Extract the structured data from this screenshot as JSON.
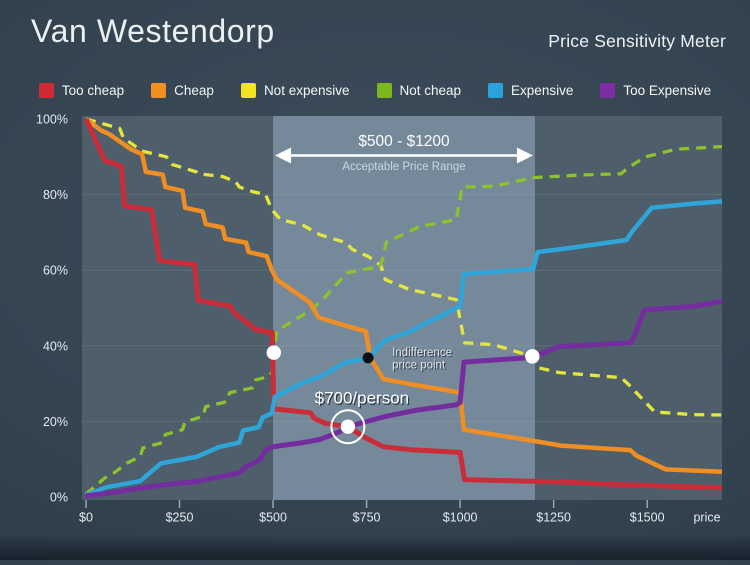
{
  "header": {
    "title": "Van Westendorp",
    "subtitle": "Price Sensitivity Meter"
  },
  "legend": {
    "items": [
      {
        "label": "Too cheap",
        "color": "#cf2b35"
      },
      {
        "label": "Cheap",
        "color": "#f09022"
      },
      {
        "label": "Not expensive",
        "color": "#f2e41e"
      },
      {
        "label": "Not cheap",
        "color": "#7db71e"
      },
      {
        "label": "Expensive",
        "color": "#2ba3da"
      },
      {
        "label": "Too Expensive",
        "color": "#7c2fa4"
      }
    ]
  },
  "chart_data": {
    "type": "line",
    "title": "Van Westendorp Price Sensitivity Meter",
    "xlabel": "price",
    "ylabel": "",
    "xlim": [
      0,
      1700
    ],
    "ylim": [
      0,
      100
    ],
    "grid": "horizontal",
    "x_ticks": [
      {
        "value": 0,
        "label": "$0"
      },
      {
        "value": 250,
        "label": "$250"
      },
      {
        "value": 500,
        "label": "$500"
      },
      {
        "value": 750,
        "label": "$750"
      },
      {
        "value": 1000,
        "label": "$1000"
      },
      {
        "value": 1250,
        "label": "$1250"
      },
      {
        "value": 1500,
        "label": "$1500"
      }
    ],
    "y_ticks": [
      {
        "value": 0,
        "label": "0%"
      },
      {
        "value": 20,
        "label": "20%"
      },
      {
        "value": 40,
        "label": "40%"
      },
      {
        "value": 60,
        "label": "60%"
      },
      {
        "value": 80,
        "label": "80%"
      },
      {
        "value": 100,
        "label": "100%"
      }
    ],
    "acceptable_range": {
      "from": 500,
      "to": 1200,
      "label": "$500 - $1200",
      "sublabel": "Acceptable Price Range"
    },
    "series": [
      {
        "name": "Not expensive",
        "color": "#e3e63e",
        "style": "dashed",
        "width": 3.3,
        "points": [
          [
            0,
            100
          ],
          [
            90,
            97.5
          ],
          [
            100,
            95
          ],
          [
            150,
            91.5
          ],
          [
            215,
            90
          ],
          [
            230,
            88
          ],
          [
            295,
            86
          ],
          [
            300,
            85.5
          ],
          [
            365,
            84.8
          ],
          [
            400,
            83.4
          ],
          [
            410,
            82
          ],
          [
            445,
            80.8
          ],
          [
            480,
            80
          ],
          [
            497,
            76
          ],
          [
            520,
            73.4
          ],
          [
            578,
            72
          ],
          [
            625,
            69.4
          ],
          [
            695,
            67.3
          ],
          [
            712,
            65.5
          ],
          [
            755,
            63.6
          ],
          [
            788,
            61.3
          ],
          [
            800,
            57.5
          ],
          [
            865,
            54.9
          ],
          [
            990,
            52.2
          ],
          [
            1000,
            47
          ],
          [
            1012,
            40.8
          ],
          [
            1090,
            40.3
          ],
          [
            1193,
            37.2
          ],
          [
            1208,
            34.2
          ],
          [
            1265,
            32.9
          ],
          [
            1430,
            31.6
          ],
          [
            1448,
            30
          ],
          [
            1520,
            22.5
          ],
          [
            1620,
            21.8
          ],
          [
            1700,
            21.7
          ]
        ]
      },
      {
        "name": "Not cheap",
        "color": "#8cc32d",
        "style": "dashed",
        "width": 3.3,
        "points": [
          [
            0,
            0.8
          ],
          [
            50,
            5
          ],
          [
            75,
            6.4
          ],
          [
            110,
            9
          ],
          [
            145,
            10.7
          ],
          [
            152,
            13
          ],
          [
            205,
            14.4
          ],
          [
            212,
            16.5
          ],
          [
            258,
            17.8
          ],
          [
            265,
            19.9
          ],
          [
            312,
            21.3
          ],
          [
            320,
            23.9
          ],
          [
            376,
            25.2
          ],
          [
            384,
            27.6
          ],
          [
            446,
            28.9
          ],
          [
            454,
            31
          ],
          [
            487,
            31.8
          ],
          [
            497,
            33
          ],
          [
            502,
            38.1
          ],
          [
            510,
            44
          ],
          [
            600,
            49.4
          ],
          [
            640,
            53
          ],
          [
            697,
            59.3
          ],
          [
            785,
            61
          ],
          [
            795,
            63.5
          ],
          [
            802,
            67.3
          ],
          [
            890,
            71.5
          ],
          [
            990,
            73.4
          ],
          [
            1005,
            82
          ],
          [
            1090,
            82.2
          ],
          [
            1195,
            84.5
          ],
          [
            1330,
            85.2
          ],
          [
            1430,
            85.5
          ],
          [
            1448,
            87
          ],
          [
            1495,
            90
          ],
          [
            1578,
            92
          ],
          [
            1700,
            92.7
          ]
        ]
      },
      {
        "name": "Cheap",
        "color": "#ee8e23",
        "style": "solid",
        "width": 4.5,
        "points": [
          [
            0,
            100
          ],
          [
            40,
            97
          ],
          [
            62,
            96
          ],
          [
            120,
            92
          ],
          [
            150,
            90.7
          ],
          [
            160,
            86
          ],
          [
            205,
            85.3
          ],
          [
            212,
            82
          ],
          [
            258,
            81
          ],
          [
            265,
            76.5
          ],
          [
            312,
            75.5
          ],
          [
            320,
            72.2
          ],
          [
            365,
            71.3
          ],
          [
            372,
            68.3
          ],
          [
            428,
            67.3
          ],
          [
            435,
            64.8
          ],
          [
            483,
            63.7
          ],
          [
            497,
            60
          ],
          [
            510,
            57.5
          ],
          [
            598,
            51.5
          ],
          [
            622,
            47.5
          ],
          [
            698,
            45.2
          ],
          [
            748,
            43.8
          ],
          [
            760,
            36.8
          ],
          [
            795,
            31.2
          ],
          [
            875,
            29.7
          ],
          [
            955,
            28.4
          ],
          [
            1000,
            27.6
          ],
          [
            1010,
            17.8
          ],
          [
            1200,
            14.8
          ],
          [
            1270,
            13.6
          ],
          [
            1455,
            12.4
          ],
          [
            1470,
            11
          ],
          [
            1550,
            7.3
          ],
          [
            1700,
            6.7
          ]
        ]
      },
      {
        "name": "Too cheap",
        "color": "#c92d3a",
        "style": "solid",
        "width": 5,
        "points": [
          [
            0,
            100
          ],
          [
            50,
            89
          ],
          [
            95,
            87.5
          ],
          [
            103,
            77
          ],
          [
            175,
            76
          ],
          [
            197,
            62.5
          ],
          [
            290,
            61.5
          ],
          [
            300,
            52
          ],
          [
            385,
            50.5
          ],
          [
            395,
            48.8
          ],
          [
            455,
            44.2
          ],
          [
            498,
            43.5
          ],
          [
            502,
            23.3
          ],
          [
            600,
            22.3
          ],
          [
            610,
            20.8
          ],
          [
            640,
            19.5
          ],
          [
            700,
            18.6
          ],
          [
            745,
            15.8
          ],
          [
            795,
            13.3
          ],
          [
            870,
            12.5
          ],
          [
            1000,
            11.8
          ],
          [
            1012,
            4.6
          ],
          [
            1260,
            4
          ],
          [
            1450,
            3.2
          ],
          [
            1700,
            2.4
          ]
        ]
      },
      {
        "name": "Expensive",
        "color": "#2ea6da",
        "style": "solid",
        "width": 4.5,
        "points": [
          [
            0,
            0.5
          ],
          [
            55,
            2.6
          ],
          [
            145,
            4.2
          ],
          [
            200,
            8.9
          ],
          [
            295,
            10.6
          ],
          [
            355,
            13.2
          ],
          [
            410,
            14.4
          ],
          [
            420,
            17.6
          ],
          [
            462,
            18.5
          ],
          [
            472,
            21
          ],
          [
            497,
            22.2
          ],
          [
            505,
            26.5
          ],
          [
            580,
            30.2
          ],
          [
            625,
            31.8
          ],
          [
            695,
            35.6
          ],
          [
            754,
            36.8
          ],
          [
            800,
            41.5
          ],
          [
            865,
            43.7
          ],
          [
            900,
            45.6
          ],
          [
            953,
            48.1
          ],
          [
            1000,
            50.5
          ],
          [
            1010,
            59
          ],
          [
            1195,
            60.3
          ],
          [
            1207,
            64.8
          ],
          [
            1310,
            66.1
          ],
          [
            1445,
            68
          ],
          [
            1458,
            70
          ],
          [
            1512,
            76.5
          ],
          [
            1620,
            77.6
          ],
          [
            1700,
            78.2
          ]
        ]
      },
      {
        "name": "Too Expensive",
        "color": "#742d9e",
        "style": "solid",
        "width": 5,
        "points": [
          [
            0,
            0.3
          ],
          [
            70,
            1.2
          ],
          [
            205,
            3.2
          ],
          [
            295,
            4.1
          ],
          [
            355,
            5.3
          ],
          [
            410,
            6.4
          ],
          [
            428,
            8
          ],
          [
            465,
            9.9
          ],
          [
            478,
            12
          ],
          [
            492,
            13.2
          ],
          [
            580,
            14.4
          ],
          [
            625,
            15.2
          ],
          [
            672,
            17
          ],
          [
            700,
            18.6
          ],
          [
            740,
            19.7
          ],
          [
            805,
            21.4
          ],
          [
            885,
            23
          ],
          [
            990,
            24.4
          ],
          [
            1000,
            25
          ],
          [
            1010,
            35.7
          ],
          [
            1190,
            36.9
          ],
          [
            1205,
            37.4
          ],
          [
            1265,
            39.8
          ],
          [
            1455,
            40.8
          ],
          [
            1468,
            43
          ],
          [
            1492,
            49.5
          ],
          [
            1620,
            50.4
          ],
          [
            1700,
            51.8
          ]
        ]
      }
    ],
    "key_points": [
      {
        "id": "point-of-marginal-cheapness",
        "price": 502,
        "pct": 38.2,
        "dot": "white"
      },
      {
        "id": "indifference-price-point",
        "price": 754,
        "pct": 36.8,
        "dot": "black",
        "label_lines": [
          "Indifference",
          "price point"
        ]
      },
      {
        "id": "optimal-price-point",
        "price": 700,
        "pct": 18.6,
        "dot": "white-ring",
        "label": "$700/person"
      },
      {
        "id": "point-of-marginal-expensiveness",
        "price": 1193,
        "pct": 37.2,
        "dot": "white"
      }
    ]
  }
}
